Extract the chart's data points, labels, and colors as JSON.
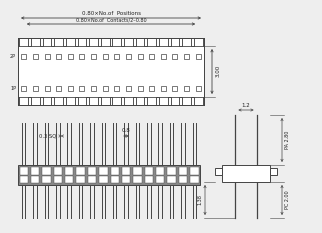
{
  "bg_color": "#eeeeee",
  "line_color": "#444444",
  "dim_color": "#444444",
  "text_color": "#222222",
  "n_pins": 16,
  "top_view": {
    "dim1_text": "0.80×No.of  Positions",
    "dim2_text": "0.80×No.of  Contacts/2–0.80",
    "right_dim_text": "3.00",
    "label_2p": "2P",
    "label_1p": "1P"
  },
  "front_view": {
    "dim_sq_text": "0.3 SQ",
    "dim_08_text": "0.8"
  },
  "side_view": {
    "dim_12_text": "1.2",
    "dim_pa_text": "PA 2.80",
    "dim_138_text": "1.38",
    "dim_pc_text": "PC 2.00"
  }
}
